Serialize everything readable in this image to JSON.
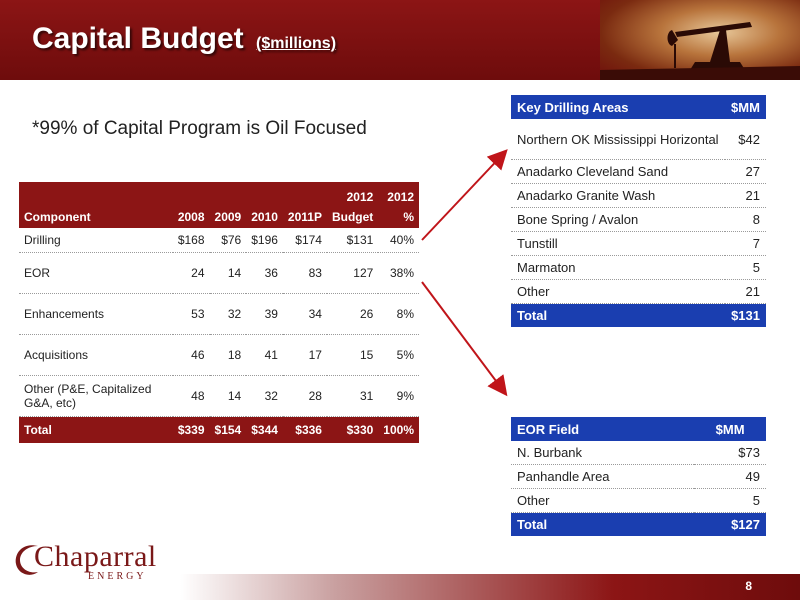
{
  "header": {
    "title": "Capital Budget",
    "title_unit": "($millions)"
  },
  "subtitle": "*99% of Capital Program is Oil Focused",
  "capital_table": {
    "columns": [
      {
        "line1": "",
        "line2": "Component"
      },
      {
        "line1": "",
        "line2": "2008"
      },
      {
        "line1": "",
        "line2": "2009"
      },
      {
        "line1": "",
        "line2": "2010"
      },
      {
        "line1": "",
        "line2": "2011P"
      },
      {
        "line1": "2012",
        "line2": "Budget"
      },
      {
        "line1": "2012",
        "line2": "%"
      }
    ],
    "rows": [
      {
        "component": "Drilling",
        "y2008": "$168",
        "y2009": "$76",
        "y2010": "$196",
        "y2011p": "$174",
        "budget2012": "$131",
        "pct2012": "40%"
      },
      {
        "component": "EOR",
        "y2008": "24",
        "y2009": "14",
        "y2010": "36",
        "y2011p": "83",
        "budget2012": "127",
        "pct2012": "38%"
      },
      {
        "component": "Enhancements",
        "y2008": "53",
        "y2009": "32",
        "y2010": "39",
        "y2011p": "34",
        "budget2012": "26",
        "pct2012": "8%"
      },
      {
        "component": "Acquisitions",
        "y2008": "46",
        "y2009": "18",
        "y2010": "41",
        "y2011p": "17",
        "budget2012": "15",
        "pct2012": "5%"
      },
      {
        "component": "Other (P&E, Capitalized G&A, etc)",
        "y2008": "48",
        "y2009": "14",
        "y2010": "32",
        "y2011p": "28",
        "budget2012": "31",
        "pct2012": "9%"
      }
    ],
    "total": {
      "component": "Total",
      "y2008": "$339",
      "y2009": "$154",
      "y2010": "$344",
      "y2011p": "$336",
      "budget2012": "$330",
      "pct2012": "100%"
    }
  },
  "drilling_table": {
    "header_name": "Key Drilling Areas",
    "header_value": "$MM",
    "rows": [
      {
        "name": "Northern OK Mississippi Horizontal",
        "value": "$42"
      },
      {
        "name": "Anadarko Cleveland Sand",
        "value": "27"
      },
      {
        "name": "Anadarko Granite Wash",
        "value": "21"
      },
      {
        "name": "Bone Spring / Avalon",
        "value": "8"
      },
      {
        "name": "Tunstill",
        "value": "7"
      },
      {
        "name": "Marmaton",
        "value": "5"
      },
      {
        "name": "Other",
        "value": "21"
      }
    ],
    "total": {
      "name": "Total",
      "value": "$131"
    }
  },
  "eor_table": {
    "header_name": "EOR Field",
    "header_value": "$MM",
    "rows": [
      {
        "name": "N. Burbank",
        "value": "$73"
      },
      {
        "name": "Panhandle Area",
        "value": "49"
      },
      {
        "name": "Other",
        "value": "5"
      }
    ],
    "total": {
      "name": "Total",
      "value": "$127"
    }
  },
  "logo": {
    "name": "Chaparral",
    "sub": "ENERGY"
  },
  "footer": {
    "page_number": "8"
  },
  "colors": {
    "brand_red": "#8c1515",
    "table_blue": "#1a3eb0",
    "arrow_red": "#c0151a"
  }
}
